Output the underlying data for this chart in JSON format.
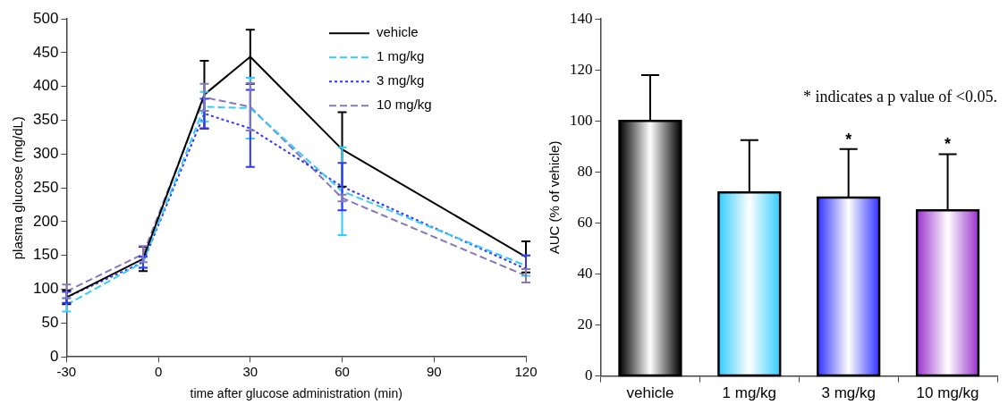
{
  "chart_data": [
    {
      "type": "line",
      "xlabel": "time after glucose administration (min)",
      "ylabel": "plasma glucose (mg/dL)",
      "x": [
        -30,
        -5,
        15,
        30,
        60,
        120
      ],
      "xlim": [
        -30,
        120
      ],
      "xticks": [
        -30,
        0,
        30,
        60,
        90,
        120
      ],
      "ylim": [
        0,
        500
      ],
      "yticks": [
        0,
        50,
        100,
        150,
        200,
        250,
        300,
        350,
        400,
        450,
        500
      ],
      "grid": false,
      "legend": "top right",
      "series": [
        {
          "name": "vehicle",
          "color": "#000000",
          "line_style": "solid",
          "values": [
            88,
            145,
            388,
            444,
            307,
            148
          ],
          "errors": [
            10,
            18,
            50,
            40,
            55,
            23
          ]
        },
        {
          "name": "1 mg/kg",
          "color": "#33ccff",
          "line_style": "dashed",
          "values": [
            77,
            140,
            370,
            368,
            245,
            135
          ],
          "errors": [
            10,
            8,
            22,
            45,
            65,
            15
          ]
        },
        {
          "name": "3 mg/kg",
          "color": "#3333ff",
          "line_style": "dotted",
          "values": [
            88,
            140,
            360,
            338,
            252,
            130
          ],
          "errors": [
            8,
            8,
            22,
            57,
            35,
            20
          ]
        },
        {
          "name": "10 mg/kg",
          "color": "#8877bb",
          "line_style": "dashed",
          "values": [
            97,
            152,
            384,
            370,
            235,
            120
          ],
          "errors": [
            10,
            12,
            20,
            35,
            5,
            10
          ]
        }
      ]
    },
    {
      "type": "bar",
      "ylabel": "AUC (% of vehicle)",
      "categories": [
        "vehicle",
        "1 mg/kg",
        "3 mg/kg",
        "10 mg/kg"
      ],
      "values": [
        100,
        72,
        70,
        65
      ],
      "colors": [
        "#000000",
        "#33ccff",
        "#3333ff",
        "#9933cc"
      ],
      "errors": [
        [
          100,
          118
        ],
        [
          72,
          92.5
        ],
        [
          70,
          89
        ],
        [
          65,
          87
        ]
      ],
      "ylim": [
        0,
        140
      ],
      "yticks": [
        0,
        20,
        40,
        60,
        80,
        100,
        120,
        140
      ],
      "grid": false,
      "legend": false,
      "annotations": [
        "* indicates a p value of <0.05.",
        {
          "text": "*",
          "x": "3 mg/kg",
          "y": 89
        },
        {
          "text": "*",
          "x": "10 mg/kg",
          "y": 87
        }
      ]
    }
  ]
}
